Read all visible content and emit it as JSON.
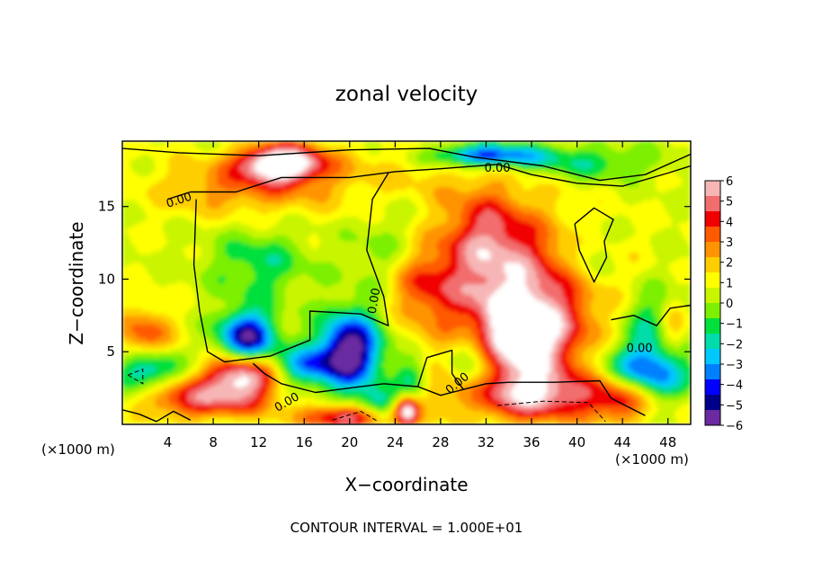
{
  "chart_data": {
    "type": "heatmap",
    "title": "zonal velocity",
    "xlabel": "X−coordinate",
    "ylabel": "Z−coordinate",
    "x_unit_left": "(×1000 m)",
    "x_unit_right": "(×1000 m)",
    "xlim": [
      0,
      50
    ],
    "ylim": [
      0,
      19.5
    ],
    "xticks": [
      4,
      8,
      12,
      16,
      20,
      24,
      28,
      32,
      36,
      40,
      44,
      48
    ],
    "yticks": [
      5,
      10,
      15
    ],
    "zlim": [
      -6,
      6
    ],
    "colorbar_ticks": [
      "6",
      "5",
      "4",
      "3",
      "2",
      "1",
      "0",
      "−1",
      "−2",
      "−3",
      "−4",
      "−5",
      "−6"
    ],
    "colorbar_colors": [
      "#f7b6b6",
      "#f26d6d",
      "#f00000",
      "#ff5a00",
      "#ff9400",
      "#ffce00",
      "#ffff00",
      "#c9f500",
      "#7cf000",
      "#00e03c",
      "#00dcaa",
      "#00c8ff",
      "#0080ff",
      "#0000ff",
      "#00008b",
      "#6b2aa0"
    ],
    "contour_labels": [
      "0.00",
      "0.00",
      "0.00",
      "0.00",
      "0.00",
      "0.00"
    ],
    "footnote": "CONTOUR INTERVAL = 1.000E+01",
    "field_blobs": [
      {
        "x": 14,
        "z": 18,
        "rx": 3.5,
        "rz": 1.2,
        "v": 7
      },
      {
        "x": 11,
        "z": 16.3,
        "rx": 8,
        "rz": 2,
        "v": 2.2
      },
      {
        "x": 35,
        "z": 8,
        "rx": 7,
        "rz": 5.5,
        "v": 4.5
      },
      {
        "x": 35,
        "z": 6,
        "rx": 4,
        "rz": 2.8,
        "v": 4
      },
      {
        "x": 32,
        "z": 13,
        "rx": 4,
        "rz": 3.5,
        "v": 3
      },
      {
        "x": 26,
        "z": 9.5,
        "rx": 3.5,
        "rz": 2.5,
        "v": 2.5
      },
      {
        "x": 10.5,
        "z": 3.3,
        "rx": 3,
        "rz": 1.5,
        "v": 6
      },
      {
        "x": 4,
        "z": 2.5,
        "rx": 3.5,
        "rz": 1.5,
        "v": 3
      },
      {
        "x": 2,
        "z": 6,
        "rx": 2.5,
        "rz": 2,
        "v": 3
      },
      {
        "x": 36,
        "z": 2,
        "rx": 9,
        "rz": 1.7,
        "v": 4
      },
      {
        "x": 20,
        "z": 0.5,
        "rx": 4,
        "rz": 0.9,
        "v": 5
      },
      {
        "x": 8,
        "z": 1.5,
        "rx": 5,
        "rz": 1.2,
        "v": 3
      },
      {
        "x": 48.5,
        "z": 6.5,
        "rx": 1.5,
        "rz": 2,
        "v": 3
      },
      {
        "x": 44,
        "z": 1.8,
        "rx": 2.5,
        "rz": 1.6,
        "v": 3
      },
      {
        "x": 24,
        "z": 17.5,
        "rx": 9,
        "rz": 2,
        "v": 0.9
      },
      {
        "x": 20,
        "z": 5,
        "rx": 2.8,
        "rz": 2.6,
        "v": -7
      },
      {
        "x": 11,
        "z": 6,
        "rx": 2.5,
        "rz": 1.8,
        "v": -6
      },
      {
        "x": 2.5,
        "z": 3.5,
        "rx": 3,
        "rz": 1.6,
        "v": -5
      },
      {
        "x": 31,
        "z": 4,
        "rx": 2.5,
        "rz": 3,
        "v": -3.2
      },
      {
        "x": 46,
        "z": 3.5,
        "rx": 4,
        "rz": 2,
        "v": -5
      },
      {
        "x": 47,
        "z": 7,
        "rx": 3,
        "rz": 2.5,
        "v": -2.5
      },
      {
        "x": 32,
        "z": 18.5,
        "rx": 5,
        "rz": 0.8,
        "v": -5
      },
      {
        "x": 41,
        "z": 18,
        "rx": 6,
        "rz": 1.2,
        "v": -2
      },
      {
        "x": 12,
        "z": 11,
        "rx": 4.5,
        "rz": 2.5,
        "v": -2
      },
      {
        "x": 23,
        "z": 11,
        "rx": 3,
        "rz": 3.5,
        "v": -1.4
      },
      {
        "x": 16,
        "z": 4,
        "rx": 2.5,
        "rz": 1.3,
        "v": -3.5
      },
      {
        "x": 25.5,
        "z": 3,
        "rx": 1.5,
        "rz": 1.5,
        "v": -3
      },
      {
        "x": 22.5,
        "z": 1.3,
        "rx": 2,
        "rz": 1.2,
        "v": -3.5
      },
      {
        "x": 41,
        "z": 11.5,
        "rx": 2.2,
        "rz": 2.2,
        "v": -1.4
      },
      {
        "x": 25,
        "z": 1,
        "rx": 1,
        "rz": 1,
        "v": 5
      }
    ],
    "contours": [
      [
        [
          0,
          19
        ],
        [
          5,
          18.7
        ],
        [
          12,
          18.5
        ],
        [
          20,
          18.9
        ],
        [
          27,
          19
        ],
        [
          31,
          18.4
        ],
        [
          37,
          17.8
        ],
        [
          42,
          16.8
        ],
        [
          46,
          17.2
        ],
        [
          50,
          18.6
        ]
      ],
      [
        [
          4,
          15.5
        ],
        [
          6,
          16
        ],
        [
          10,
          16
        ],
        [
          14,
          17
        ],
        [
          20,
          17
        ],
        [
          24,
          17.4
        ],
        [
          28,
          17.6
        ],
        [
          33,
          17.9
        ],
        [
          36,
          17.2
        ],
        [
          40,
          16.6
        ],
        [
          44,
          16.4
        ],
        [
          48,
          17.3
        ],
        [
          50,
          17.8
        ]
      ],
      [
        [
          6.5,
          15.5
        ],
        [
          6.3,
          11
        ],
        [
          6.8,
          7.8
        ],
        [
          7.5,
          5
        ],
        [
          9,
          4.3
        ],
        [
          13,
          4.7
        ],
        [
          16.5,
          5.8
        ],
        [
          16.5,
          7.8
        ],
        [
          21,
          7.6
        ],
        [
          23.4,
          6.8
        ],
        [
          23,
          8.8
        ],
        [
          21.5,
          12
        ],
        [
          22,
          15.5
        ],
        [
          23.4,
          17.3
        ]
      ],
      [
        [
          11.5,
          4.2
        ],
        [
          12.5,
          3.5
        ],
        [
          14,
          2.8
        ],
        [
          17,
          2.2
        ],
        [
          20,
          2.5
        ],
        [
          23,
          2.8
        ],
        [
          26,
          2.6
        ],
        [
          28,
          2
        ],
        [
          30,
          2.4
        ],
        [
          32,
          2.8
        ],
        [
          34,
          2.9
        ],
        [
          38,
          2.9
        ],
        [
          42,
          3
        ],
        [
          43,
          1.8
        ],
        [
          46,
          0.6
        ]
      ],
      [
        [
          39.8,
          13.8
        ],
        [
          40.2,
          12
        ],
        [
          41.5,
          9.8
        ],
        [
          42.6,
          11.5
        ],
        [
          42.4,
          12.6
        ],
        [
          43.2,
          14.1
        ],
        [
          41.5,
          14.9
        ],
        [
          39.8,
          13.8
        ]
      ],
      [
        [
          43,
          7.2
        ],
        [
          45,
          7.5
        ],
        [
          47,
          6.8
        ],
        [
          48.2,
          8
        ],
        [
          50,
          8.2
        ]
      ],
      [
        [
          0,
          1
        ],
        [
          1.5,
          0.7
        ],
        [
          3,
          0.2
        ],
        [
          4.5,
          0.9
        ],
        [
          6,
          0.3
        ]
      ],
      [
        [
          26,
          2.6
        ],
        [
          26.8,
          4.6
        ],
        [
          29,
          5.1
        ],
        [
          29,
          3.5
        ],
        [
          30,
          2.4
        ]
      ]
    ],
    "dashed_contours": [
      [
        [
          0.5,
          3.4
        ],
        [
          1.8,
          2.8
        ],
        [
          1.8,
          3.8
        ],
        [
          0.5,
          3.4
        ]
      ],
      [
        [
          33,
          1.3
        ],
        [
          37,
          1.6
        ],
        [
          41,
          1.5
        ],
        [
          42.5,
          0.2
        ]
      ],
      [
        [
          18.5,
          0.3
        ],
        [
          21,
          0.9
        ],
        [
          22.5,
          0.2
        ]
      ]
    ],
    "contour_label_positions": [
      {
        "x": 33,
        "z": 17.6,
        "rot": 0
      },
      {
        "x": 5,
        "z": 15.4,
        "rot": -18
      },
      {
        "x": 22.2,
        "z": 8.5,
        "rot": -80
      },
      {
        "x": 45.5,
        "z": 5.2,
        "rot": 0
      },
      {
        "x": 29.5,
        "z": 2.8,
        "rot": -40
      },
      {
        "x": 14.5,
        "z": 1.5,
        "rot": -30
      }
    ]
  }
}
